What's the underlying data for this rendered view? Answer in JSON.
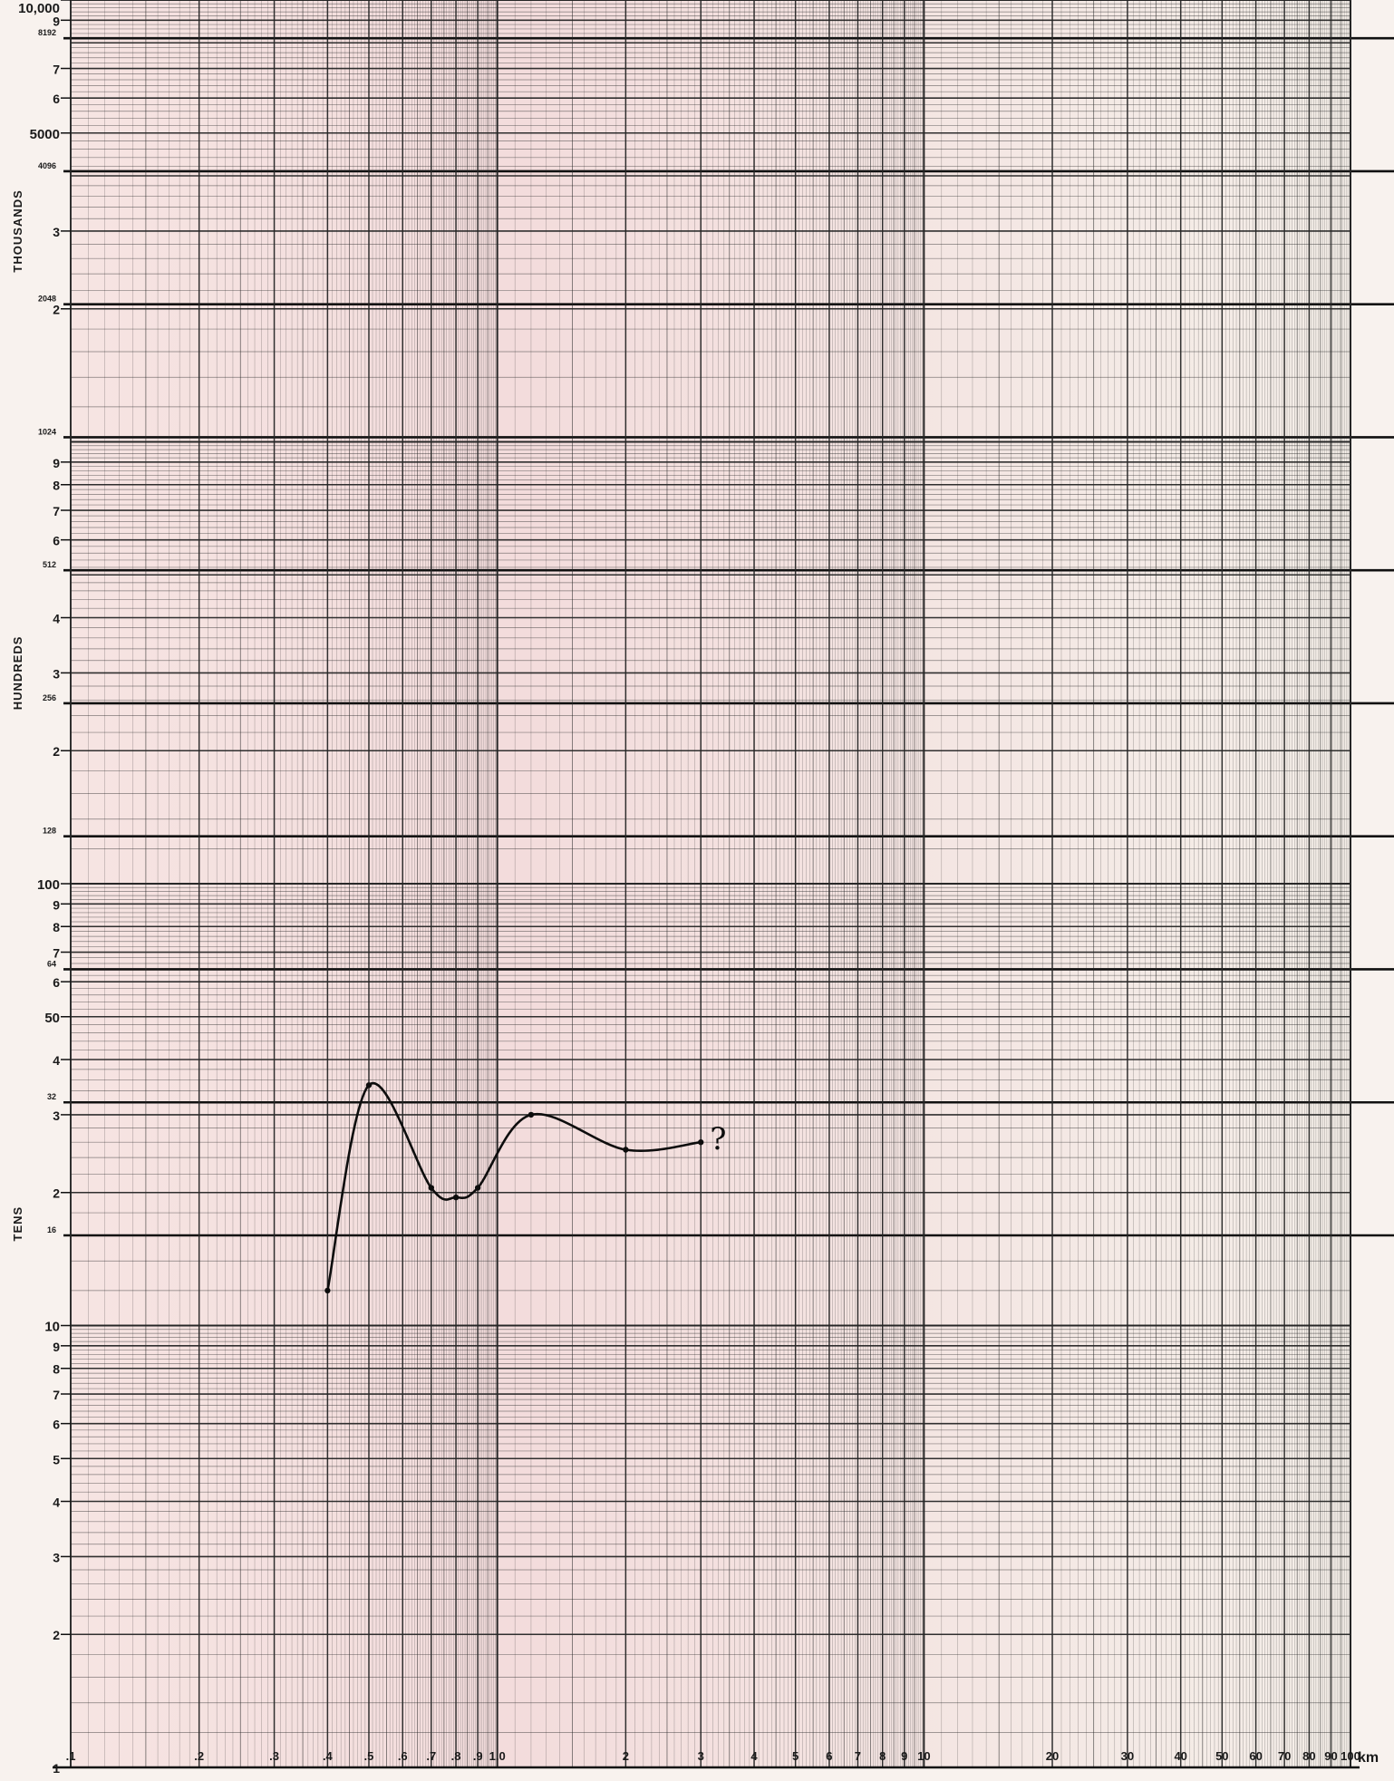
{
  "chart_data": {
    "type": "line",
    "title": "",
    "x_scale": "log",
    "y_scale": "log",
    "xlim": [
      0.1,
      100
    ],
    "ylim": [
      1,
      10000
    ],
    "x_unit_label": "km",
    "y_group_labels": [
      "THOUSANDS",
      "HUNDREDS",
      "TENS"
    ],
    "x_tick_labels": [
      {
        "v": 0.1,
        "t": ".1"
      },
      {
        "v": 0.2,
        "t": ".2"
      },
      {
        "v": 0.3,
        "t": ".3"
      },
      {
        "v": 0.4,
        "t": ".4"
      },
      {
        "v": 0.5,
        "t": ".5"
      },
      {
        "v": 0.6,
        "t": ".6"
      },
      {
        "v": 0.7,
        "t": ".7"
      },
      {
        "v": 0.8,
        "t": ".8"
      },
      {
        "v": 0.9,
        "t": ".9"
      },
      {
        "v": 1,
        "t": "1.0"
      },
      {
        "v": 2,
        "t": "2"
      },
      {
        "v": 3,
        "t": "3"
      },
      {
        "v": 4,
        "t": "4"
      },
      {
        "v": 5,
        "t": "5"
      },
      {
        "v": 6,
        "t": "6"
      },
      {
        "v": 7,
        "t": "7"
      },
      {
        "v": 8,
        "t": "8"
      },
      {
        "v": 9,
        "t": "9"
      },
      {
        "v": 10,
        "t": "10"
      },
      {
        "v": 20,
        "t": "20"
      },
      {
        "v": 30,
        "t": "30"
      },
      {
        "v": 40,
        "t": "40"
      },
      {
        "v": 50,
        "t": "50"
      },
      {
        "v": 60,
        "t": "60"
      },
      {
        "v": 70,
        "t": "70"
      },
      {
        "v": 80,
        "t": "80"
      },
      {
        "v": 90,
        "t": "90"
      },
      {
        "v": 100,
        "t": "100"
      }
    ],
    "y_tick_labels": [
      {
        "v": 1,
        "t": "1"
      },
      {
        "v": 2,
        "t": "2"
      },
      {
        "v": 3,
        "t": "3"
      },
      {
        "v": 4,
        "t": "4"
      },
      {
        "v": 5,
        "t": "5"
      },
      {
        "v": 6,
        "t": "6"
      },
      {
        "v": 7,
        "t": "7"
      },
      {
        "v": 8,
        "t": "8"
      },
      {
        "v": 9,
        "t": "9"
      },
      {
        "v": 10,
        "t": "10"
      },
      {
        "v": 20,
        "t": "2"
      },
      {
        "v": 30,
        "t": "3"
      },
      {
        "v": 40,
        "t": "4"
      },
      {
        "v": 50,
        "t": "50"
      },
      {
        "v": 60,
        "t": "6"
      },
      {
        "v": 70,
        "t": "7"
      },
      {
        "v": 80,
        "t": "8"
      },
      {
        "v": 90,
        "t": "9"
      },
      {
        "v": 100,
        "t": "100"
      },
      {
        "v": 200,
        "t": "2"
      },
      {
        "v": 300,
        "t": "3"
      },
      {
        "v": 400,
        "t": "4"
      },
      {
        "v": 600,
        "t": "6"
      },
      {
        "v": 700,
        "t": "7"
      },
      {
        "v": 800,
        "t": "8"
      },
      {
        "v": 900,
        "t": "9"
      },
      {
        "v": 2000,
        "t": "2"
      },
      {
        "v": 3000,
        "t": "3"
      },
      {
        "v": 5000,
        "t": "5000"
      },
      {
        "v": 6000,
        "t": "6"
      },
      {
        "v": 7000,
        "t": "7"
      },
      {
        "v": 9000,
        "t": "9"
      },
      {
        "v": 10000,
        "t": "10,000"
      }
    ],
    "power_of_two_lines": [
      {
        "v": 16,
        "t": "16"
      },
      {
        "v": 32,
        "t": "32"
      },
      {
        "v": 64,
        "t": "64"
      },
      {
        "v": 128,
        "t": "128"
      },
      {
        "v": 256,
        "t": "256"
      },
      {
        "v": 512,
        "t": "512"
      },
      {
        "v": 1024,
        "t": "1024"
      },
      {
        "v": 2048,
        "t": "2048"
      },
      {
        "v": 4096,
        "t": "4096"
      },
      {
        "v": 8192,
        "t": "8192"
      }
    ],
    "series": [
      {
        "points": [
          {
            "x": 0.4,
            "y": 12
          },
          {
            "x": 0.5,
            "y": 35
          },
          {
            "x": 0.7,
            "y": 20.5
          },
          {
            "x": 0.8,
            "y": 19.5
          },
          {
            "x": 0.9,
            "y": 20.5
          },
          {
            "x": 1.2,
            "y": 30
          },
          {
            "x": 2,
            "y": 25
          },
          {
            "x": 3,
            "y": 26
          }
        ]
      }
    ],
    "annotations": [
      {
        "text": "?",
        "x": 3.15,
        "y": 26.5
      }
    ]
  }
}
